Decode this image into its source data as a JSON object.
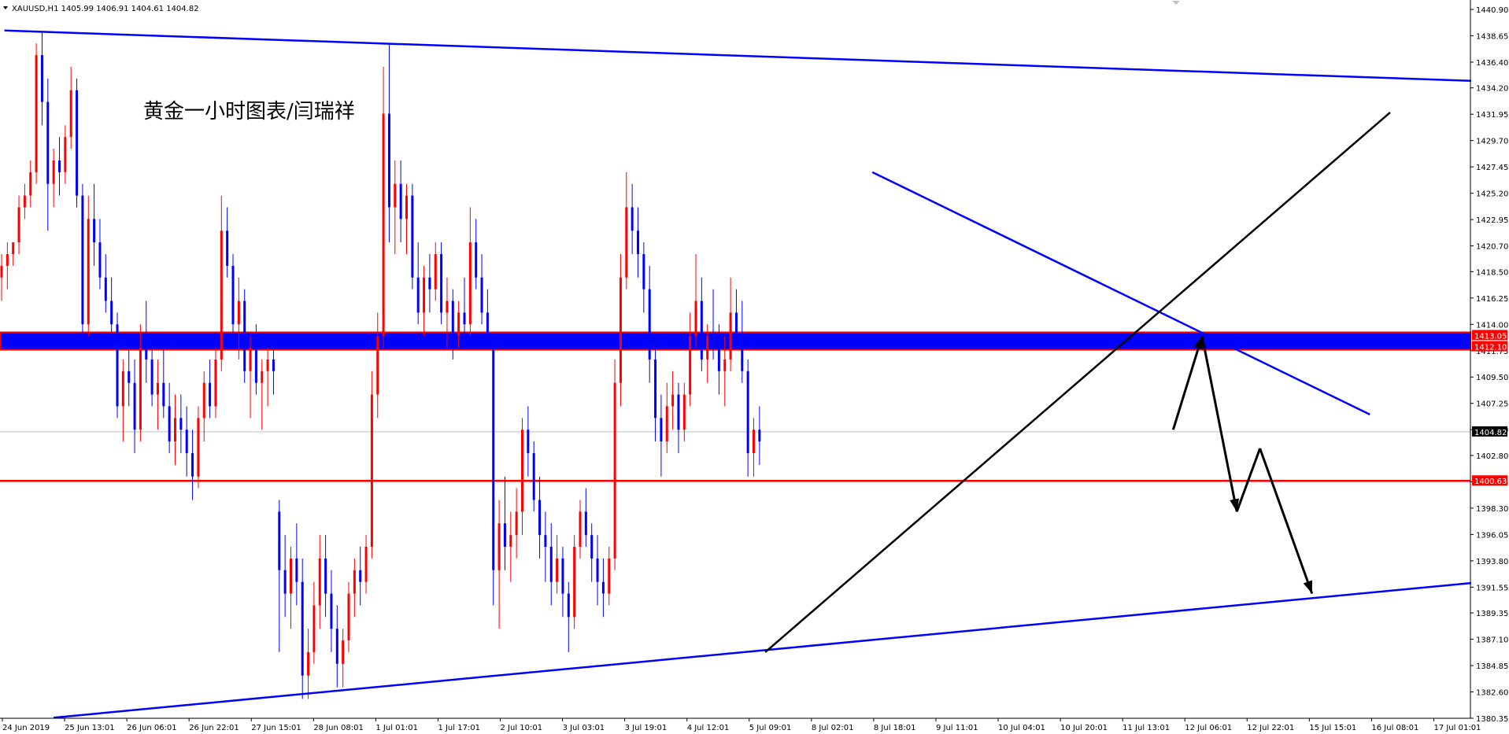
{
  "header": {
    "symbol_line": "XAUUSD,H1  1405.99 1406.91 1404.61 1404.82"
  },
  "annotation": {
    "title": "黄金一小时图表/闫瑞祥"
  },
  "chart_data": {
    "type": "candlestick",
    "symbol": "XAUUSD,H1",
    "ohlc_header": {
      "open": 1405.99,
      "high": 1406.91,
      "low": 1404.61,
      "close": 1404.82
    },
    "ylim": [
      1380.35,
      1440.9
    ],
    "y_tick_labels": [
      "1440.90",
      "1438.65",
      "1436.40",
      "1434.20",
      "1431.95",
      "1429.70",
      "1427.45",
      "1425.20",
      "1422.95",
      "1420.70",
      "1418.50",
      "1416.25",
      "1414.00",
      "1411.75",
      "1409.50",
      "1407.25",
      "1405.00",
      "1402.80",
      "1400.55",
      "1398.30",
      "1396.05",
      "1393.80",
      "1391.55",
      "1389.35",
      "1387.10",
      "1384.85",
      "1382.60",
      "1380.35"
    ],
    "x_tick_labels": [
      "24 Jun 2019",
      "25 Jun 13:01",
      "26 Jun 06:01",
      "26 Jun 22:01",
      "27 Jun 15:01",
      "28 Jun 08:01",
      "1 Jul 01:01",
      "1 Jul 17:01",
      "2 Jul 10:01",
      "3 Jul 03:01",
      "3 Jul 19:01",
      "4 Jul 12:01",
      "5 Jul 09:01",
      "8 Jul 02:01",
      "8 Jul 18:01",
      "9 Jul 11:01",
      "10 Jul 04:01",
      "10 Jul 20:01",
      "11 Jul 13:01",
      "12 Jul 06:01",
      "12 Jul 22:01",
      "15 Jul 15:01",
      "16 Jul 08:01",
      "17 Jul 01:01"
    ],
    "price_marks": [
      {
        "label": "1413.05",
        "value": 1413.05,
        "bg": "#ff0000"
      },
      {
        "label": "1412.10",
        "value": 1412.1,
        "bg": "#ff0000"
      },
      {
        "label": "1404.82",
        "value": 1404.82,
        "bg": "#000000"
      },
      {
        "label": "1400.63",
        "value": 1400.63,
        "bg": "#ff0000"
      }
    ],
    "horizontal_levels": [
      {
        "value_top": 1413.05,
        "value_bottom": 1412.1,
        "style": "band",
        "color": "#0000ff",
        "border": "#ff0000"
      },
      {
        "value": 1400.63,
        "style": "line",
        "color": "#ff0000"
      },
      {
        "value": 1404.82,
        "style": "bid",
        "color": "#c0c0c0"
      }
    ],
    "trendlines": [
      {
        "name": "upper-channel",
        "color": "#0000ff",
        "from": [
          0.5,
          1439.1
        ],
        "to": [
          254,
          1434.8
        ]
      },
      {
        "name": "lower-channel",
        "color": "#0000ff",
        "from": [
          9,
          1380.4
        ],
        "to": [
          254,
          1391.9
        ]
      },
      {
        "name": "descending-resistance",
        "color": "#0000ff",
        "from": [
          150.5,
          1427.0
        ],
        "to": [
          236.5,
          1406.3
        ]
      },
      {
        "name": "rising-support",
        "color": "#000000",
        "from": [
          132,
          1386.0
        ],
        "to": [
          240,
          1432.1
        ]
      }
    ],
    "projection_path": [
      [
        202.5,
        1405.0
      ],
      [
        207.5,
        1413.0
      ],
      [
        213.5,
        1398.0
      ],
      [
        217.5,
        1403.4
      ],
      [
        226.5,
        1391.0
      ]
    ],
    "colors": {
      "up": "#ff0000",
      "down": "#0000ff",
      "background": "#ffffff",
      "axis": "#000000"
    },
    "bars": [
      [
        1418,
        1420,
        1416,
        1419
      ],
      [
        1419,
        1421,
        1417,
        1420
      ],
      [
        1420,
        1421,
        1419,
        1421
      ],
      [
        1421,
        1425,
        1420,
        1424
      ],
      [
        1424,
        1426,
        1423,
        1425
      ],
      [
        1425,
        1428,
        1424,
        1427
      ],
      [
        1427,
        1438,
        1426,
        1437
      ],
      [
        1437,
        1439,
        1431,
        1433
      ],
      [
        1433,
        1435,
        1422,
        1426
      ],
      [
        1426,
        1429,
        1424,
        1428
      ],
      [
        1428,
        1430,
        1425,
        1427
      ],
      [
        1427,
        1431,
        1426,
        1430
      ],
      [
        1430,
        1436,
        1429,
        1434
      ],
      [
        1434,
        1435,
        1424,
        1425
      ],
      [
        1425,
        1426,
        1412,
        1414
      ],
      [
        1414,
        1425,
        1413,
        1423
      ],
      [
        1423,
        1426,
        1419,
        1421
      ],
      [
        1421,
        1423,
        1417,
        1418
      ],
      [
        1418,
        1420,
        1415,
        1416
      ],
      [
        1416,
        1418,
        1412,
        1414
      ],
      [
        1414,
        1415,
        1406,
        1407
      ],
      [
        1407,
        1411,
        1404,
        1410
      ],
      [
        1410,
        1413,
        1407,
        1409
      ],
      [
        1409,
        1411,
        1403,
        1405
      ],
      [
        1405,
        1414,
        1404,
        1412
      ],
      [
        1412,
        1416,
        1409,
        1411
      ],
      [
        1411,
        1412,
        1407,
        1408
      ],
      [
        1408,
        1411,
        1405,
        1409
      ],
      [
        1409,
        1412,
        1406,
        1407
      ],
      [
        1407,
        1409,
        1403,
        1404
      ],
      [
        1404,
        1408,
        1402,
        1406
      ],
      [
        1406,
        1408,
        1403,
        1405
      ],
      [
        1405,
        1407,
        1401,
        1403
      ],
      [
        1403,
        1405,
        1399,
        1401
      ],
      [
        1401,
        1407,
        1400,
        1406
      ],
      [
        1406,
        1410,
        1404,
        1409
      ],
      [
        1409,
        1411,
        1406,
        1407
      ],
      [
        1407,
        1412,
        1406,
        1411
      ],
      [
        1411,
        1425,
        1410,
        1422
      ],
      [
        1422,
        1424,
        1418,
        1419
      ],
      [
        1419,
        1420,
        1413,
        1414
      ],
      [
        1414,
        1418,
        1411,
        1416
      ],
      [
        1416,
        1417,
        1409,
        1410
      ],
      [
        1410,
        1413,
        1406,
        1412
      ],
      [
        1412,
        1414,
        1408,
        1409
      ],
      [
        1409,
        1411,
        1405,
        1410
      ],
      [
        1410,
        1412,
        1407,
        1411
      ],
      [
        1411,
        1412,
        1408,
        1410
      ],
      [
        1398,
        1399,
        1386,
        1393
      ],
      [
        1393,
        1396,
        1389,
        1391
      ],
      [
        1391,
        1395,
        1388,
        1394
      ],
      [
        1394,
        1397,
        1390,
        1392
      ],
      [
        1392,
        1394,
        1382,
        1384
      ],
      [
        1384,
        1388,
        1382,
        1386
      ],
      [
        1386,
        1392,
        1385,
        1390
      ],
      [
        1390,
        1396,
        1388,
        1394
      ],
      [
        1394,
        1396,
        1389,
        1391
      ],
      [
        1391,
        1393,
        1386,
        1388
      ],
      [
        1388,
        1390,
        1383,
        1385
      ],
      [
        1385,
        1388,
        1383,
        1387
      ],
      [
        1387,
        1392,
        1386,
        1391
      ],
      [
        1391,
        1394,
        1389,
        1393
      ],
      [
        1393,
        1395,
        1390,
        1392
      ],
      [
        1392,
        1396,
        1391,
        1395
      ],
      [
        1395,
        1410,
        1394,
        1408
      ],
      [
        1408,
        1415,
        1406,
        1413
      ],
      [
        1413,
        1436,
        1412,
        1432
      ],
      [
        1432,
        1438,
        1421,
        1424
      ],
      [
        1424,
        1428,
        1420,
        1426
      ],
      [
        1426,
        1428,
        1421,
        1423
      ],
      [
        1423,
        1426,
        1420,
        1425
      ],
      [
        1425,
        1426,
        1417,
        1418
      ],
      [
        1418,
        1421,
        1414,
        1415
      ],
      [
        1415,
        1419,
        1413,
        1418
      ],
      [
        1418,
        1420,
        1415,
        1417
      ],
      [
        1417,
        1421,
        1416,
        1420
      ],
      [
        1420,
        1421,
        1414,
        1415
      ],
      [
        1415,
        1418,
        1412,
        1416
      ],
      [
        1416,
        1417,
        1411,
        1413
      ],
      [
        1413,
        1416,
        1412,
        1415
      ],
      [
        1415,
        1418,
        1413,
        1414
      ],
      [
        1414,
        1424,
        1413,
        1421
      ],
      [
        1421,
        1423,
        1417,
        1418
      ],
      [
        1418,
        1420,
        1414,
        1415
      ],
      [
        1415,
        1417,
        1412,
        1413
      ],
      [
        1413,
        1413,
        1390,
        1393
      ],
      [
        1393,
        1399,
        1388,
        1397
      ],
      [
        1397,
        1401,
        1393,
        1395
      ],
      [
        1395,
        1398,
        1392,
        1396
      ],
      [
        1396,
        1400,
        1394,
        1398
      ],
      [
        1398,
        1406,
        1396,
        1405
      ],
      [
        1405,
        1407,
        1401,
        1403
      ],
      [
        1403,
        1404,
        1398,
        1399
      ],
      [
        1399,
        1401,
        1394,
        1396
      ],
      [
        1396,
        1398,
        1392,
        1395
      ],
      [
        1395,
        1397,
        1390,
        1392
      ],
      [
        1392,
        1396,
        1391,
        1394
      ],
      [
        1394,
        1395,
        1389,
        1391
      ],
      [
        1391,
        1392,
        1386,
        1389
      ],
      [
        1389,
        1396,
        1388,
        1395
      ],
      [
        1395,
        1399,
        1394,
        1398
      ],
      [
        1398,
        1400,
        1395,
        1396
      ],
      [
        1396,
        1397,
        1392,
        1394
      ],
      [
        1394,
        1396,
        1390,
        1392
      ],
      [
        1392,
        1394,
        1389,
        1391
      ],
      [
        1391,
        1395,
        1390,
        1394
      ],
      [
        1394,
        1411,
        1393,
        1409
      ],
      [
        1409,
        1420,
        1407,
        1418
      ],
      [
        1418,
        1427,
        1417,
        1424
      ],
      [
        1424,
        1426,
        1420,
        1422
      ],
      [
        1422,
        1424,
        1418,
        1420
      ],
      [
        1420,
        1421,
        1415,
        1417
      ],
      [
        1417,
        1419,
        1409,
        1411
      ],
      [
        1411,
        1412,
        1404,
        1406
      ],
      [
        1406,
        1408,
        1401,
        1404
      ],
      [
        1404,
        1409,
        1403,
        1407
      ],
      [
        1407,
        1410,
        1405,
        1408
      ],
      [
        1408,
        1409,
        1403,
        1405
      ],
      [
        1405,
        1409,
        1404,
        1408
      ],
      [
        1408,
        1415,
        1407,
        1413
      ],
      [
        1413,
        1420,
        1412,
        1416
      ],
      [
        1416,
        1418,
        1410,
        1411
      ],
      [
        1411,
        1414,
        1409,
        1413
      ],
      [
        1413,
        1417,
        1411,
        1412
      ],
      [
        1412,
        1414,
        1408,
        1410
      ],
      [
        1410,
        1413,
        1407,
        1411
      ],
      [
        1411,
        1418,
        1410,
        1415
      ],
      [
        1415,
        1417,
        1412,
        1413
      ],
      [
        1413,
        1416,
        1409,
        1410
      ],
      [
        1410,
        1411,
        1401,
        1403
      ],
      [
        1403,
        1406,
        1401,
        1405
      ],
      [
        1405,
        1407,
        1402,
        1404
      ]
    ]
  }
}
